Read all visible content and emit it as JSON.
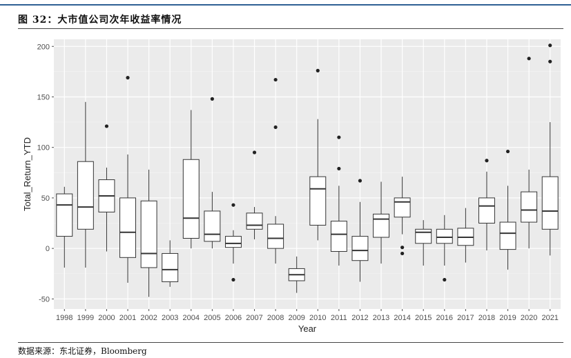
{
  "figure": {
    "title": "图 32：大市值公司次年收益率情况",
    "source": "数据来源：东北证券，Bloomberg"
  },
  "chart_data": {
    "type": "boxplot",
    "xlabel": "Year",
    "ylabel": "Total_Return_YTD",
    "ylim": [
      -60,
      207
    ],
    "yticks": [
      -50,
      0,
      50,
      100,
      150,
      200
    ],
    "grid": true,
    "background": "#ebebeb",
    "categories": [
      "1998",
      "1999",
      "2000",
      "2001",
      "2002",
      "2003",
      "2004",
      "2005",
      "2006",
      "2007",
      "2008",
      "2009",
      "2010",
      "2011",
      "2012",
      "2013",
      "2014",
      "2015",
      "2016",
      "2017",
      "2018",
      "2019",
      "2020",
      "2021"
    ],
    "boxes": [
      {
        "year": "1998",
        "low": -19,
        "q1": 12,
        "median": 43,
        "q3": 54,
        "high": 61,
        "outliers": []
      },
      {
        "year": "1999",
        "low": -19,
        "q1": 19,
        "median": 41,
        "q3": 86,
        "high": 145,
        "outliers": []
      },
      {
        "year": "2000",
        "low": -3,
        "q1": 36,
        "median": 52,
        "q3": 68,
        "high": 80,
        "outliers": [
          121
        ]
      },
      {
        "year": "2001",
        "low": -34,
        "q1": -9,
        "median": 16,
        "q3": 50,
        "high": 93,
        "outliers": [
          169
        ]
      },
      {
        "year": "2002",
        "low": -48,
        "q1": -19,
        "median": -5,
        "q3": 47,
        "high": 78,
        "outliers": []
      },
      {
        "year": "2003",
        "low": -38,
        "q1": -33,
        "median": -21,
        "q3": -5,
        "high": 8,
        "outliers": []
      },
      {
        "year": "2004",
        "low": 0,
        "q1": 10,
        "median": 30,
        "q3": 88,
        "high": 137,
        "outliers": []
      },
      {
        "year": "2005",
        "low": 0,
        "q1": 7,
        "median": 14,
        "q3": 37,
        "high": 56,
        "outliers": [
          148
        ]
      },
      {
        "year": "2006",
        "low": -15,
        "q1": 1,
        "median": 5,
        "q3": 12,
        "high": 18,
        "outliers": [
          43,
          -31
        ]
      },
      {
        "year": "2007",
        "low": 9,
        "q1": 19,
        "median": 23,
        "q3": 35,
        "high": 41,
        "outliers": [
          95
        ]
      },
      {
        "year": "2008",
        "low": -15,
        "q1": 0,
        "median": 10,
        "q3": 24,
        "high": 32,
        "outliers": [
          120,
          167
        ]
      },
      {
        "year": "2009",
        "low": -44,
        "q1": -32,
        "median": -26,
        "q3": -20,
        "high": -8,
        "outliers": []
      },
      {
        "year": "2010",
        "low": 8,
        "q1": 23,
        "median": 59,
        "q3": 71,
        "high": 128,
        "outliers": [
          176
        ]
      },
      {
        "year": "2011",
        "low": -17,
        "q1": -3,
        "median": 14,
        "q3": 27,
        "high": 62,
        "outliers": [
          79,
          110
        ]
      },
      {
        "year": "2012",
        "low": -33,
        "q1": -12,
        "median": -2,
        "q3": 12,
        "high": 46,
        "outliers": [
          67
        ]
      },
      {
        "year": "2013",
        "low": -15,
        "q1": 11,
        "median": 29,
        "q3": 34,
        "high": 66,
        "outliers": []
      },
      {
        "year": "2014",
        "low": 14,
        "q1": 31,
        "median": 46,
        "q3": 50,
        "high": 71,
        "outliers": [
          1,
          -5
        ]
      },
      {
        "year": "2015",
        "low": -17,
        "q1": 5,
        "median": 16,
        "q3": 19,
        "high": 28,
        "outliers": []
      },
      {
        "year": "2016",
        "low": -17,
        "q1": 5,
        "median": 11,
        "q3": 19,
        "high": 33,
        "outliers": [
          -31
        ]
      },
      {
        "year": "2017",
        "low": -14,
        "q1": 3,
        "median": 11,
        "q3": 20,
        "high": 40,
        "outliers": []
      },
      {
        "year": "2018",
        "low": -2,
        "q1": 25,
        "median": 42,
        "q3": 50,
        "high": 76,
        "outliers": [
          87
        ]
      },
      {
        "year": "2019",
        "low": -21,
        "q1": -1,
        "median": 15,
        "q3": 26,
        "high": 62,
        "outliers": [
          96
        ]
      },
      {
        "year": "2020",
        "low": 0,
        "q1": 26,
        "median": 38,
        "q3": 56,
        "high": 78,
        "outliers": [
          188
        ]
      },
      {
        "year": "2021",
        "low": -7,
        "q1": 19,
        "median": 37,
        "q3": 71,
        "high": 125,
        "outliers": [
          185,
          201
        ]
      }
    ]
  }
}
